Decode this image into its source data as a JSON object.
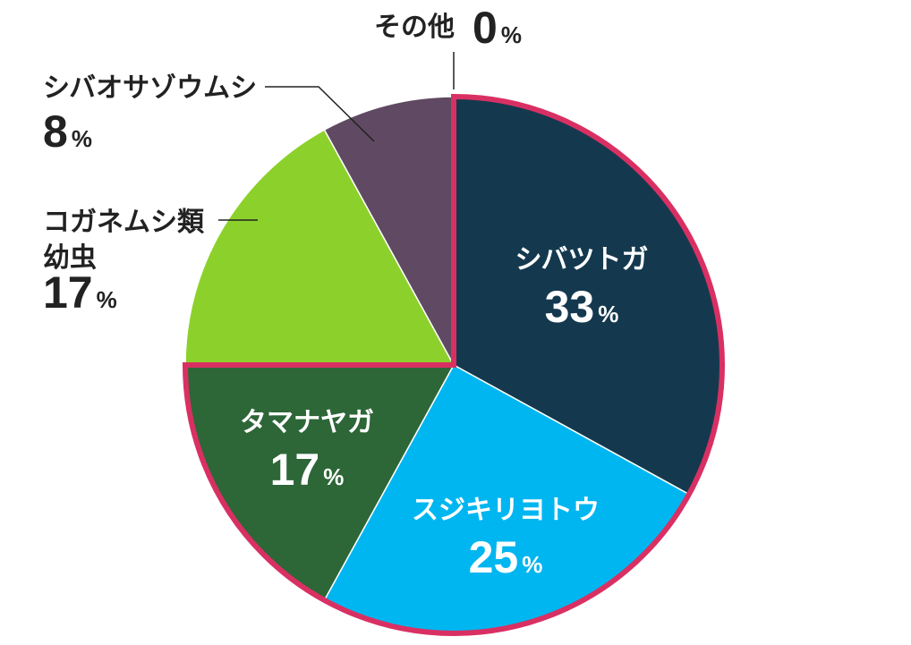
{
  "chart_data": {
    "type": "pie",
    "categories": [
      "シバツトガ",
      "スジキリヨトウ",
      "タマナヤガ",
      "コガネムシ類幼虫",
      "シバオサゾウムシ",
      "その他"
    ],
    "values": [
      33,
      25,
      17,
      17,
      8,
      0
    ],
    "unit": "%",
    "colors": [
      "#14394f",
      "#00b6f0",
      "#2d6637",
      "#8cd12b",
      "#604962",
      "#999999"
    ],
    "highlight_color": "#d93063",
    "highlighted": [
      "シバツトガ",
      "スジキリヨトウ",
      "タマナヤガ"
    ],
    "labels": [
      {
        "name_lines": [
          "シバツトガ"
        ],
        "value": "33",
        "unit": "%"
      },
      {
        "name_lines": [
          "スジキリヨトウ"
        ],
        "value": "25",
        "unit": "%"
      },
      {
        "name_lines": [
          "タマナヤガ"
        ],
        "value": "17",
        "unit": "%"
      },
      {
        "name_lines": [
          "コガネムシ類",
          "幼虫"
        ],
        "value": "17",
        "unit": "%"
      },
      {
        "name_lines": [
          "シバオサゾウムシ"
        ],
        "value": "8",
        "unit": "%"
      },
      {
        "name_lines": [
          "その他"
        ],
        "value": "0",
        "unit": "%"
      }
    ]
  }
}
